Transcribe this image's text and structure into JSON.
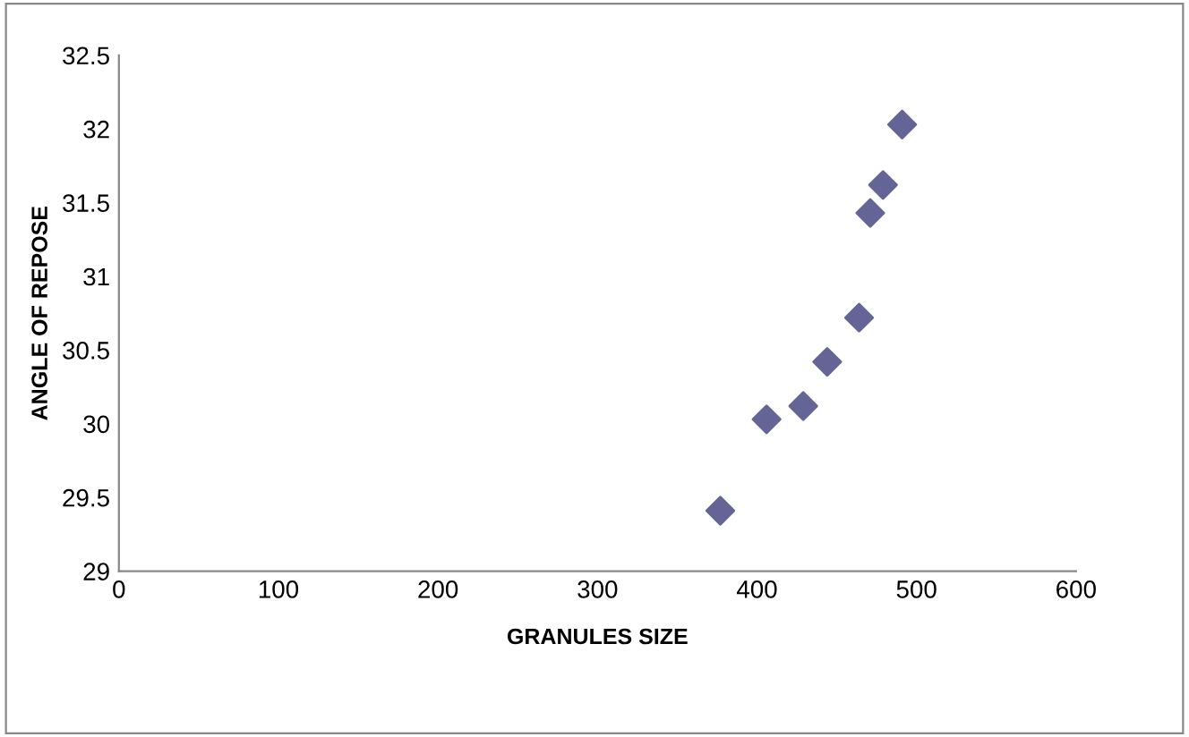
{
  "chart_data": {
    "type": "scatter",
    "xlabel": "GRANULES SIZE",
    "ylabel": "ANGLE OF REPOSE",
    "x": [
      377,
      406,
      429,
      444,
      464,
      471,
      479,
      491
    ],
    "series": [
      {
        "color": "#646496",
        "values": [
          29.41,
          30.03,
          30.12,
          30.42,
          30.72,
          31.43,
          31.62,
          32.03
        ]
      }
    ],
    "xlim": [
      0,
      600
    ],
    "xticks": [
      0,
      100,
      200,
      300,
      400,
      500,
      600
    ],
    "ylim": [
      29,
      32.5
    ],
    "yticks": [
      29,
      29.5,
      30,
      30.5,
      31,
      31.5,
      32,
      32.5
    ],
    "marker": "diamond",
    "grid": false,
    "legend": false
  }
}
